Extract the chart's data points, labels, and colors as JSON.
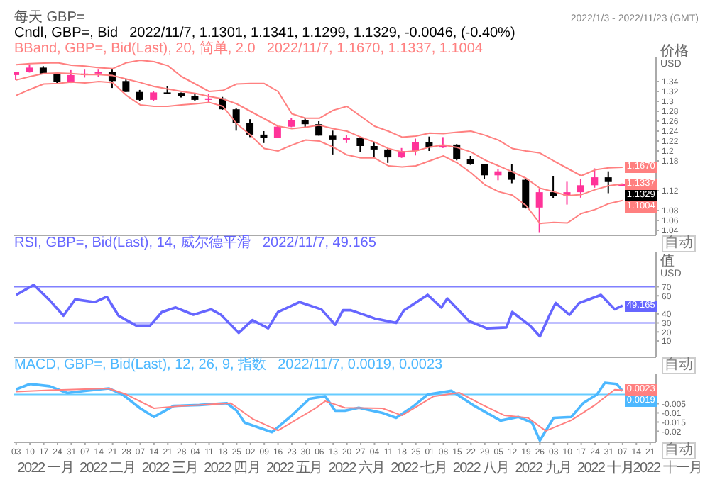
{
  "chart_data": [
    {
      "type": "candlestick",
      "title": "每天 GBP=",
      "subtitle": "2022/1/3 - 2022/11/23 (GMT)",
      "ylabel": "价格\nUSD",
      "legend": "top left",
      "tick_labels": "y",
      "xlim": [
        "2022-01-02",
        "2022-11-24"
      ],
      "ylim": [
        1.03,
        1.39
      ],
      "yticks": [
        1.34,
        1.32,
        1.3,
        1.28,
        1.26,
        1.24,
        1.22,
        1.2,
        1.18,
        1.12,
        1.08,
        1.06,
        1.04
      ],
      "x": [
        "2022-01-03",
        "2022-01-10",
        "2022-01-17",
        "2022-01-24",
        "2022-01-31",
        "2022-02-07",
        "2022-02-14",
        "2022-02-21",
        "2022-02-28",
        "2022-03-07",
        "2022-03-14",
        "2022-03-21",
        "2022-03-28",
        "2022-04-04",
        "2022-04-11",
        "2022-04-18",
        "2022-04-25",
        "2022-05-02",
        "2022-05-09",
        "2022-05-16",
        "2022-05-23",
        "2022-05-30",
        "2022-06-06",
        "2022-06-13",
        "2022-06-20",
        "2022-06-27",
        "2022-07-04",
        "2022-07-11",
        "2022-07-18",
        "2022-07-25",
        "2022-08-01",
        "2022-08-08",
        "2022-08-15",
        "2022-08-22",
        "2022-08-29",
        "2022-09-05",
        "2022-09-12",
        "2022-09-19",
        "2022-09-26",
        "2022-10-03",
        "2022-10-10",
        "2022-10-17",
        "2022-10-24",
        "2022-10-31",
        "2022-11-07"
      ],
      "annotations": [
        "2022/11/7, 1.1301, 1.1341, 1.1299, 1.1329, -0.0046, (-0.40%)",
        "2022/11/7, 1.1670, 1.1337, 1.1004",
        "自动"
      ],
      "series": [
        {
          "name": "Cndl, GBP=, Bid",
          "color": "#000000",
          "colors": [
            "#ff3399",
            "#ff3399",
            "#000000",
            "#000000",
            "#ff3399",
            "#ff3399",
            "#ff3399",
            "#000000",
            "#000000",
            "#000000",
            "#ff3399",
            "#000000",
            "#000000",
            "#000000",
            "#ff3399",
            "#000000",
            "#000000",
            "#000000",
            "#000000",
            "#ff3399",
            "#ff3399",
            "#000000",
            "#000000",
            "#000000",
            "#ff3399",
            "#000000",
            "#000000",
            "#000000",
            "#ff3399",
            "#ff3399",
            "#000000",
            "#ff3399",
            "#000000",
            "#000000",
            "#000000",
            "#ff3399",
            "#000000",
            "#000000",
            "#ff3399",
            "#000000",
            "#ff3399",
            "#ff3399",
            "#ff3399",
            "#000000",
            "#ff3399"
          ],
          "ohlc": [
            [
              1.353,
              1.36,
              1.343,
              1.359
            ],
            [
              1.359,
              1.375,
              1.358,
              1.368
            ],
            [
              1.368,
              1.371,
              1.355,
              1.355
            ],
            [
              1.355,
              1.356,
              1.336,
              1.339
            ],
            [
              1.339,
              1.363,
              1.337,
              1.353
            ],
            [
              1.353,
              1.364,
              1.348,
              1.356
            ],
            [
              1.356,
              1.364,
              1.35,
              1.359
            ],
            [
              1.359,
              1.364,
              1.327,
              1.341
            ],
            [
              1.341,
              1.344,
              1.319,
              1.319
            ],
            [
              1.319,
              1.323,
              1.3,
              1.303
            ],
            [
              1.303,
              1.321,
              1.3,
              1.318
            ],
            [
              1.318,
              1.33,
              1.316,
              1.317
            ],
            [
              1.317,
              1.318,
              1.308,
              1.311
            ],
            [
              1.311,
              1.316,
              1.3,
              1.303
            ],
            [
              1.303,
              1.315,
              1.297,
              1.306
            ],
            [
              1.306,
              1.309,
              1.283,
              1.284
            ],
            [
              1.284,
              1.286,
              1.241,
              1.257
            ],
            [
              1.257,
              1.264,
              1.228,
              1.233
            ],
            [
              1.233,
              1.24,
              1.216,
              1.226
            ],
            [
              1.226,
              1.253,
              1.226,
              1.249
            ],
            [
              1.249,
              1.266,
              1.248,
              1.262
            ],
            [
              1.262,
              1.266,
              1.246,
              1.254
            ],
            [
              1.254,
              1.26,
              1.231,
              1.231
            ],
            [
              1.231,
              1.241,
              1.193,
              1.223
            ],
            [
              1.223,
              1.232,
              1.216,
              1.227
            ],
            [
              1.227,
              1.229,
              1.198,
              1.21
            ],
            [
              1.21,
              1.217,
              1.188,
              1.203
            ],
            [
              1.203,
              1.204,
              1.176,
              1.187
            ],
            [
              1.187,
              1.206,
              1.186,
              1.2
            ],
            [
              1.2,
              1.225,
              1.191,
              1.218
            ],
            [
              1.218,
              1.229,
              1.2,
              1.207
            ],
            [
              1.207,
              1.228,
              1.206,
              1.213
            ],
            [
              1.213,
              1.214,
              1.181,
              1.183
            ],
            [
              1.183,
              1.19,
              1.172,
              1.173
            ],
            [
              1.173,
              1.174,
              1.144,
              1.151
            ],
            [
              1.151,
              1.164,
              1.141,
              1.159
            ],
            [
              1.159,
              1.174,
              1.135,
              1.142
            ],
            [
              1.142,
              1.144,
              1.084,
              1.086
            ],
            [
              1.086,
              1.123,
              1.035,
              1.117
            ],
            [
              1.117,
              1.15,
              1.105,
              1.109
            ],
            [
              1.109,
              1.138,
              1.092,
              1.117
            ],
            [
              1.117,
              1.144,
              1.106,
              1.131
            ],
            [
              1.131,
              1.165,
              1.126,
              1.147
            ],
            [
              1.147,
              1.159,
              1.115,
              1.1375
            ],
            [
              1.1301,
              1.1341,
              1.1299,
              1.1329
            ]
          ],
          "value_labels": [
            null,
            null,
            null,
            null,
            null,
            null,
            null,
            null,
            null,
            null,
            null,
            null,
            null,
            null,
            null,
            null,
            null,
            null,
            null,
            null,
            null,
            null,
            null,
            null,
            null,
            null,
            null,
            null,
            null,
            null,
            null,
            null,
            null,
            null,
            null,
            null,
            null,
            null,
            null,
            null,
            null,
            null,
            null,
            null,
            "1.1329"
          ]
        },
        {
          "name": "BBand, GBP=, Bid(Last), 20, 简单, 2.0",
          "type": "line",
          "color": "#ff8080",
          "values": [
            1.374,
            1.376,
            1.377,
            1.378,
            1.373,
            1.371,
            1.368,
            1.366,
            1.378,
            1.383,
            1.38,
            1.372,
            1.35,
            1.335,
            1.32,
            1.322,
            1.335,
            1.336,
            1.336,
            1.32,
            1.275,
            1.266,
            1.266,
            1.282,
            1.29,
            1.27,
            1.25,
            1.24,
            1.228,
            1.23,
            1.236,
            1.235,
            1.238,
            1.24,
            1.232,
            1.222,
            1.205,
            1.2,
            1.196,
            1.18,
            1.165,
            1.15,
            1.162,
            1.166,
            1.167
          ],
          "value_labels": [
            null,
            null,
            null,
            null,
            null,
            null,
            null,
            null,
            null,
            null,
            null,
            null,
            null,
            null,
            null,
            null,
            null,
            null,
            null,
            null,
            null,
            null,
            null,
            null,
            null,
            null,
            null,
            null,
            null,
            null,
            null,
            null,
            null,
            null,
            null,
            null,
            null,
            null,
            null,
            null,
            null,
            null,
            null,
            null,
            "1.1670"
          ]
        },
        {
          "type": "line",
          "color": "#ff8080",
          "values": [
            1.343,
            1.35,
            1.356,
            1.357,
            1.356,
            1.354,
            1.354,
            1.352,
            1.345,
            1.338,
            1.33,
            1.325,
            1.32,
            1.316,
            1.31,
            1.305,
            1.295,
            1.28,
            1.265,
            1.25,
            1.245,
            1.248,
            1.252,
            1.245,
            1.24,
            1.228,
            1.218,
            1.205,
            1.198,
            1.2,
            1.208,
            1.212,
            1.207,
            1.198,
            1.182,
            1.17,
            1.158,
            1.145,
            1.125,
            1.118,
            1.11,
            1.112,
            1.122,
            1.13,
            1.1337
          ],
          "value_labels": [
            null,
            null,
            null,
            null,
            null,
            null,
            null,
            null,
            null,
            null,
            null,
            null,
            null,
            null,
            null,
            null,
            null,
            null,
            null,
            null,
            null,
            null,
            null,
            null,
            null,
            null,
            null,
            null,
            null,
            null,
            null,
            null,
            null,
            null,
            null,
            null,
            null,
            null,
            null,
            null,
            null,
            null,
            null,
            null,
            "1.1337"
          ]
        },
        {
          "type": "line",
          "color": "#ff8080",
          "values": [
            1.312,
            1.324,
            1.335,
            1.336,
            1.339,
            1.337,
            1.34,
            1.338,
            1.312,
            1.293,
            1.29,
            1.29,
            1.293,
            1.295,
            1.298,
            1.29,
            1.255,
            1.232,
            1.205,
            1.2,
            1.212,
            1.222,
            1.22,
            1.208,
            1.192,
            1.186,
            1.186,
            1.17,
            1.168,
            1.17,
            1.18,
            1.19,
            1.176,
            1.156,
            1.132,
            1.118,
            1.111,
            1.09,
            1.054,
            1.056,
            1.055,
            1.074,
            1.082,
            1.094,
            1.1004
          ],
          "value_labels": [
            null,
            null,
            null,
            null,
            null,
            null,
            null,
            null,
            null,
            null,
            null,
            null,
            null,
            null,
            null,
            null,
            null,
            null,
            null,
            null,
            null,
            null,
            null,
            null,
            null,
            null,
            null,
            null,
            null,
            null,
            null,
            null,
            null,
            null,
            null,
            null,
            null,
            null,
            null,
            null,
            null,
            null,
            null,
            null,
            "1.1004"
          ]
        }
      ]
    },
    {
      "type": "line",
      "ylabel": "值\nUSD",
      "legend": "top left",
      "tick_labels": "y",
      "xlim": [
        "2022-01-02",
        "2022-11-24"
      ],
      "ylim": [
        -8,
        108
      ],
      "yticks": [
        70,
        60,
        40,
        30,
        20,
        10
      ],
      "ref_lines": [
        {
          "axis": "y",
          "value": 70,
          "color": "#8080ff"
        },
        {
          "axis": "y",
          "value": 30,
          "color": "#8080ff"
        }
      ],
      "annotations": [
        "2022/11/7, 49.165",
        "自动"
      ],
      "series": [
        {
          "name": "RSI, GBP=, Bid(Last), 14, 威尔德平滑",
          "color": "#6666ff",
          "x": [
            "2022-01-03",
            "2022-01-12",
            "2022-01-20",
            "2022-01-27",
            "2022-02-02",
            "2022-02-12",
            "2022-02-18",
            "2022-02-24",
            "2022-03-05",
            "2022-03-12",
            "2022-03-18",
            "2022-03-25",
            "2022-04-03",
            "2022-04-12",
            "2022-04-17",
            "2022-04-26",
            "2022-05-03",
            "2022-05-11",
            "2022-05-16",
            "2022-05-27",
            "2022-06-07",
            "2022-06-14",
            "2022-06-18",
            "2022-06-22",
            "2022-07-04",
            "2022-07-15",
            "2022-07-19",
            "2022-07-31",
            "2022-08-07",
            "2022-08-10",
            "2022-08-21",
            "2022-08-30",
            "2022-09-09",
            "2022-09-12",
            "2022-09-21",
            "2022-09-26",
            "2022-10-01",
            "2022-10-04",
            "2022-10-11",
            "2022-10-16",
            "2022-10-27",
            "2022-11-03",
            "2022-11-07"
          ],
          "values": [
            61,
            72,
            55,
            38,
            56,
            53,
            59,
            38,
            27,
            27,
            42,
            47,
            39,
            45,
            39,
            19,
            33,
            24,
            42,
            53,
            45,
            28,
            44,
            44,
            35,
            30,
            44,
            61,
            47,
            57,
            32,
            24,
            25,
            42,
            27,
            15,
            39,
            52,
            39,
            52,
            61,
            45,
            49.165
          ],
          "value_labels": [
            null,
            null,
            null,
            null,
            null,
            null,
            null,
            null,
            null,
            null,
            null,
            null,
            null,
            null,
            null,
            null,
            null,
            null,
            null,
            null,
            null,
            null,
            null,
            null,
            null,
            null,
            null,
            null,
            null,
            null,
            null,
            null,
            null,
            null,
            null,
            null,
            null,
            null,
            null,
            null,
            null,
            null,
            "49.165"
          ]
        }
      ]
    },
    {
      "type": "line",
      "legend": "top left",
      "xlim": [
        "2022-01-02",
        "2022-11-24"
      ],
      "ylim": [
        -0.026,
        0.011
      ],
      "yticks": [
        -0.005,
        -0.01,
        -0.015,
        -0.02
      ],
      "xticks": [
        {
          "value": "2022-01-03",
          "label": "03"
        },
        {
          "value": "2022-01-10",
          "label": "10"
        },
        {
          "value": "2022-01-17",
          "label": "17"
        },
        {
          "value": "2022-01-24",
          "label": "24"
        },
        {
          "value": "2022-01-31",
          "label": "31"
        },
        {
          "value": "2022-02-07",
          "label": "07"
        },
        {
          "value": "2022-02-14",
          "label": "14"
        },
        {
          "value": "2022-02-21",
          "label": "21"
        },
        {
          "value": "2022-02-28",
          "label": "28"
        },
        {
          "value": "2022-03-07",
          "label": "07"
        },
        {
          "value": "2022-03-14",
          "label": "14"
        },
        {
          "value": "2022-03-21",
          "label": "21"
        },
        {
          "value": "2022-03-28",
          "label": "28"
        },
        {
          "value": "2022-04-04",
          "label": "04"
        },
        {
          "value": "2022-04-11",
          "label": "11"
        },
        {
          "value": "2022-04-18",
          "label": "18"
        },
        {
          "value": "2022-04-25",
          "label": "25"
        },
        {
          "value": "2022-05-02",
          "label": "02"
        },
        {
          "value": "2022-05-09",
          "label": "09"
        },
        {
          "value": "2022-05-16",
          "label": "16"
        },
        {
          "value": "2022-05-23",
          "label": "23"
        },
        {
          "value": "2022-05-30",
          "label": "30"
        },
        {
          "value": "2022-06-06",
          "label": "06"
        },
        {
          "value": "2022-06-13",
          "label": "13"
        },
        {
          "value": "2022-06-20",
          "label": "20"
        },
        {
          "value": "2022-06-27",
          "label": "27"
        },
        {
          "value": "2022-07-04",
          "label": "04"
        },
        {
          "value": "2022-07-11",
          "label": "11"
        },
        {
          "value": "2022-07-18",
          "label": "18"
        },
        {
          "value": "2022-07-25",
          "label": "25"
        },
        {
          "value": "2022-08-01",
          "label": "01"
        },
        {
          "value": "2022-08-08",
          "label": "08"
        },
        {
          "value": "2022-08-15",
          "label": "15"
        },
        {
          "value": "2022-08-22",
          "label": "22"
        },
        {
          "value": "2022-08-29",
          "label": "29"
        },
        {
          "value": "2022-09-05",
          "label": "05"
        },
        {
          "value": "2022-09-12",
          "label": "12"
        },
        {
          "value": "2022-09-19",
          "label": "19"
        },
        {
          "value": "2022-09-26",
          "label": "26"
        },
        {
          "value": "2022-10-03",
          "label": "03"
        },
        {
          "value": "2022-10-10",
          "label": "10"
        },
        {
          "value": "2022-10-17",
          "label": "17"
        },
        {
          "value": "2022-10-24",
          "label": "24"
        },
        {
          "value": "2022-10-31",
          "label": "31"
        },
        {
          "value": "2022-11-07",
          "label": "07"
        },
        {
          "value": "2022-11-14",
          "label": "14"
        },
        {
          "value": "2022-11-21",
          "label": "21"
        }
      ],
      "ref_lines": [
        {
          "axis": "y",
          "value": 0,
          "color": "#66ccff"
        }
      ],
      "annotations": [
        "2022/11/7, 0.0019, 0.0023",
        "自动",
        "2022 一月",
        "2022 二月",
        "2022 三月",
        "2022 四月",
        "2022 五月",
        "2022 六月",
        "2022 七月",
        "2022 八月",
        "2022 九月",
        "2022 十月",
        "2022 十一月"
      ],
      "series": [
        {
          "name": "MACD, GBP=, Bid(Last), 12, 26, 9, 指数",
          "color": "#4db8ff",
          "x": [
            "2022-01-03",
            "2022-01-10",
            "2022-01-20",
            "2022-01-29",
            "2022-02-07",
            "2022-02-19",
            "2022-02-26",
            "2022-03-07",
            "2022-03-14",
            "2022-03-24",
            "2022-04-06",
            "2022-04-20",
            "2022-04-25",
            "2022-04-29",
            "2022-05-13",
            "2022-05-23",
            "2022-06-01",
            "2022-06-09",
            "2022-06-14",
            "2022-06-19",
            "2022-06-26",
            "2022-07-08",
            "2022-07-15",
            "2022-07-24",
            "2022-07-31",
            "2022-08-12",
            "2022-08-23",
            "2022-09-06",
            "2022-09-15",
            "2022-09-22",
            "2022-09-26",
            "2022-10-03",
            "2022-10-12",
            "2022-10-18",
            "2022-10-25",
            "2022-10-29",
            "2022-11-04",
            "2022-11-07"
          ],
          "values": [
            0.0028,
            0.0057,
            0.0045,
            0.0008,
            0.002,
            0.0033,
            0.0,
            -0.0075,
            -0.0122,
            -0.0062,
            -0.0057,
            -0.0047,
            -0.0088,
            -0.0153,
            -0.0205,
            -0.0114,
            -0.0023,
            -0.001,
            -0.0088,
            -0.0088,
            -0.0072,
            -0.01,
            -0.0127,
            -0.0062,
            0.0,
            0.002,
            -0.0057,
            -0.0142,
            -0.0122,
            -0.0153,
            -0.025,
            -0.0127,
            -0.0122,
            -0.0047,
            0.0,
            0.0064,
            0.0057,
            0.0019
          ],
          "value_labels": [
            null,
            null,
            null,
            null,
            null,
            null,
            null,
            null,
            null,
            null,
            null,
            null,
            null,
            null,
            null,
            null,
            null,
            null,
            null,
            null,
            null,
            null,
            null,
            null,
            null,
            null,
            null,
            null,
            null,
            null,
            null,
            null,
            null,
            null,
            null,
            null,
            null,
            "0.0019"
          ]
        },
        {
          "color": "#ff8080",
          "x": [
            "2022-01-03",
            "2022-01-20",
            "2022-02-19",
            "2022-02-28",
            "2022-03-14",
            "2022-03-28",
            "2022-04-22",
            "2022-05-03",
            "2022-05-16",
            "2022-06-04",
            "2022-06-09",
            "2022-06-19",
            "2022-07-08",
            "2022-07-18",
            "2022-08-03",
            "2022-08-16",
            "2022-08-28",
            "2022-09-08",
            "2022-09-20",
            "2022-09-29",
            "2022-10-12",
            "2022-10-24",
            "2022-11-03",
            "2022-11-07"
          ],
          "values": [
            0.0016,
            0.0023,
            0.0033,
            0.0,
            -0.0075,
            -0.0062,
            -0.0047,
            -0.0132,
            -0.0196,
            -0.0075,
            -0.0036,
            -0.0072,
            -0.0075,
            -0.0114,
            -0.001,
            0.001,
            -0.0057,
            -0.0114,
            -0.0127,
            -0.0198,
            -0.014,
            -0.0057,
            0.0026,
            0.0023
          ],
          "value_labels": [
            null,
            null,
            null,
            null,
            null,
            null,
            null,
            null,
            null,
            null,
            null,
            null,
            null,
            null,
            null,
            null,
            null,
            null,
            null,
            null,
            null,
            null,
            null,
            "0.0023"
          ]
        }
      ]
    }
  ]
}
